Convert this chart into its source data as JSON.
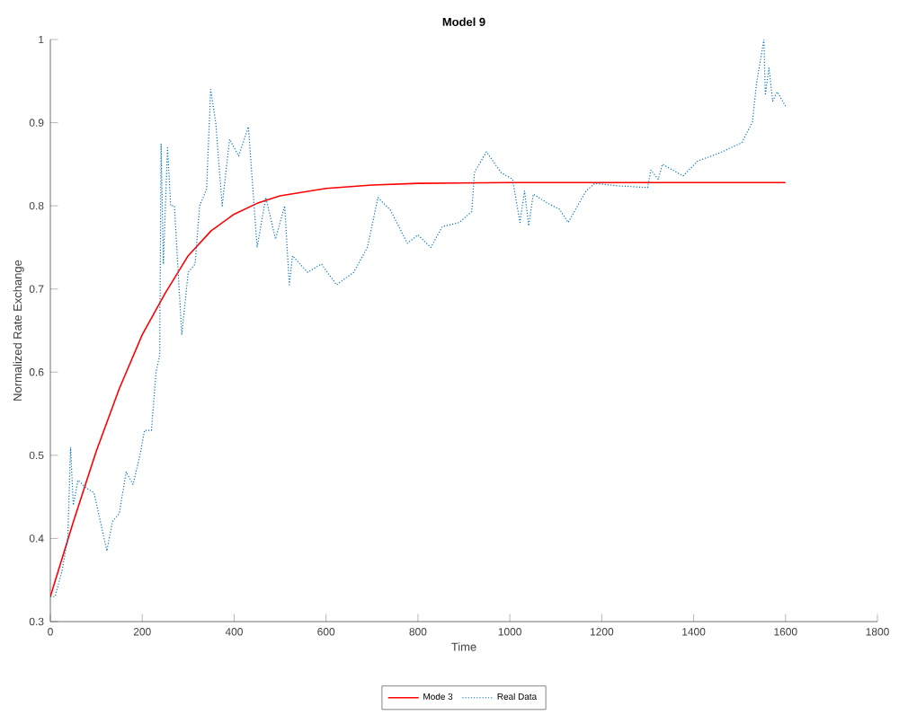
{
  "chart_data": {
    "type": "line",
    "title": "Model 9",
    "xlabel": "Time",
    "ylabel": "Normalized Rate Exchange",
    "xlim": [
      0,
      1800
    ],
    "xticks": [
      0,
      200,
      400,
      600,
      800,
      1000,
      1200,
      1400,
      1600,
      1800
    ],
    "ylim": [
      0.3,
      1
    ],
    "yticks": [
      0.3,
      0.4,
      0.5,
      0.6,
      0.7,
      0.8,
      0.9,
      1
    ],
    "grid": false,
    "legend": "bottom",
    "series": [
      {
        "name": "Mode 3",
        "color": "#ff0000",
        "line_style": "solid",
        "x": [
          0,
          50,
          100,
          150,
          200,
          250,
          300,
          350,
          400,
          450,
          500,
          600,
          700,
          800,
          1000,
          1200,
          1400,
          1600
        ],
        "values": [
          0.33,
          0.42,
          0.505,
          0.58,
          0.645,
          0.695,
          0.74,
          0.77,
          0.79,
          0.803,
          0.812,
          0.821,
          0.825,
          0.827,
          0.828,
          0.828,
          0.828,
          0.828
        ]
      },
      {
        "name": "Real Data",
        "color": "#0072bd",
        "line_style": "dotted",
        "x": [
          0,
          10,
          25,
          38,
          44,
          50,
          60,
          80,
          95,
          105,
          123,
          135,
          150,
          165,
          180,
          195,
          205,
          220,
          230,
          238,
          241,
          246,
          255,
          262,
          270,
          286,
          300,
          315,
          325,
          340,
          349,
          360,
          374,
          390,
          410,
          431,
          450,
          469,
          490,
          510,
          520,
          527,
          560,
          590,
          623,
          660,
          690,
          713,
          740,
          777,
          800,
          828,
          853,
          890,
          917,
          923,
          949,
          981,
          1006,
          1022,
          1032,
          1041,
          1051,
          1083,
          1108,
          1127,
          1166,
          1185,
          1236,
          1300,
          1307,
          1323,
          1332,
          1377,
          1409,
          1454,
          1505,
          1528,
          1537,
          1553,
          1556,
          1564,
          1572,
          1582,
          1601
        ],
        "values": [
          0.33,
          0.33,
          0.36,
          0.4,
          0.51,
          0.44,
          0.47,
          0.46,
          0.455,
          0.43,
          0.385,
          0.42,
          0.43,
          0.48,
          0.465,
          0.5,
          0.53,
          0.53,
          0.6,
          0.62,
          0.875,
          0.73,
          0.87,
          0.8,
          0.8,
          0.645,
          0.72,
          0.73,
          0.8,
          0.82,
          0.94,
          0.9,
          0.8,
          0.88,
          0.86,
          0.895,
          0.75,
          0.81,
          0.76,
          0.8,
          0.705,
          0.74,
          0.72,
          0.73,
          0.705,
          0.72,
          0.75,
          0.81,
          0.795,
          0.755,
          0.765,
          0.75,
          0.775,
          0.78,
          0.793,
          0.84,
          0.865,
          0.84,
          0.832,
          0.78,
          0.818,
          0.776,
          0.814,
          0.803,
          0.796,
          0.78,
          0.818,
          0.827,
          0.824,
          0.822,
          0.843,
          0.832,
          0.85,
          0.836,
          0.854,
          0.863,
          0.876,
          0.901,
          0.948,
          1.0,
          0.933,
          0.966,
          0.926,
          0.937,
          0.919
        ]
      }
    ]
  }
}
